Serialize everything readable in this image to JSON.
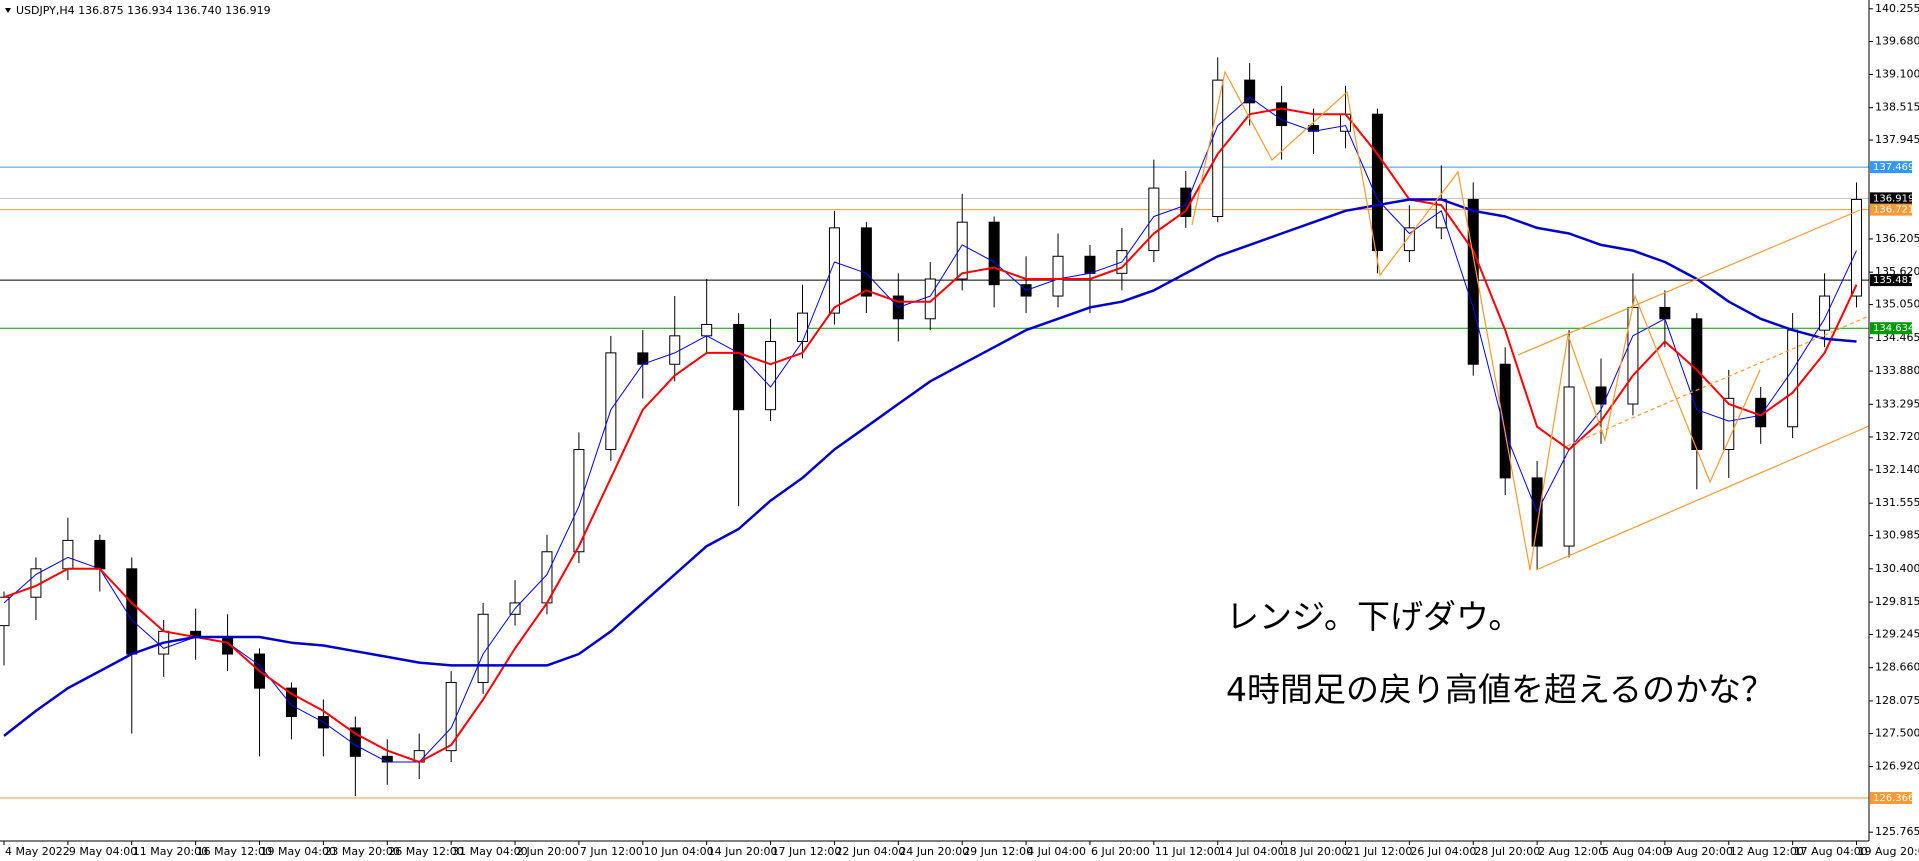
{
  "chart_data": {
    "type": "candlestick",
    "header": "USDJPY,H4  136.875 136.934 136.740 136.919",
    "annotations": [
      "レンジ。下げダウ。",
      "4時間足の戻り高値を超えるのかな？"
    ],
    "categories": [
      "4 May 2022",
      null,
      "9 May 04:00",
      null,
      "11 May 20:00",
      null,
      "16 May 12:00",
      null,
      "19 May 04:00",
      null,
      "23 May 20:00",
      null,
      "26 May 12:00",
      null,
      "31 May 04:00",
      null,
      "2 Jun 20:00",
      null,
      "7 Jun 12:00",
      null,
      "10 Jun 04:00",
      null,
      "14 Jun 20:00",
      null,
      "17 Jun 12:00",
      null,
      "22 Jun 04:00",
      null,
      "24 Jun 20:00",
      null,
      "29 Jun 12:00",
      null,
      "4 Jul 04:00",
      null,
      "6 Jul 20:00",
      null,
      "11 Jul 12:00",
      null,
      "14 Jul 04:00",
      null,
      "18 Jul 20:00",
      null,
      "21 Jul 12:00",
      null,
      "26 Jul 04:00",
      null,
      "28 Jul 20:00",
      null,
      "2 Aug 12:00",
      null,
      "5 Aug 04:00",
      null,
      "9 Aug 20:00",
      null,
      "12 Aug 12:00",
      null,
      "17 Aug 04:00",
      null,
      "19 Aug 20:00"
    ],
    "open": [
      129.4,
      129.9,
      130.4,
      130.9,
      130.4,
      128.9,
      129.3,
      129.2,
      128.9,
      128.3,
      127.8,
      127.6,
      127.1,
      127.0,
      127.2,
      128.4,
      129.6,
      129.8,
      130.7,
      132.5,
      134.2,
      134.0,
      134.5,
      134.7,
      133.2,
      134.4,
      134.9,
      136.4,
      135.2,
      134.8,
      135.5,
      136.5,
      135.4,
      135.2,
      135.9,
      135.6,
      136.0,
      137.1,
      136.6,
      139.0,
      138.6,
      138.2,
      138.1,
      138.4,
      136.0,
      136.4,
      136.9,
      134.0,
      132.0,
      130.8,
      133.6,
      133.3,
      135.0,
      134.8,
      132.5,
      133.4,
      132.9,
      134.6,
      135.2
    ],
    "high": [
      130.0,
      130.6,
      131.3,
      131.0,
      130.6,
      129.5,
      129.7,
      129.6,
      129.0,
      128.4,
      128.1,
      127.8,
      127.4,
      127.5,
      128.6,
      129.8,
      130.2,
      131.0,
      132.8,
      134.5,
      134.6,
      135.2,
      135.5,
      134.9,
      134.8,
      135.4,
      136.7,
      136.5,
      135.6,
      135.8,
      137.0,
      136.6,
      135.9,
      136.3,
      136.1,
      136.4,
      137.6,
      137.4,
      139.4,
      139.3,
      138.9,
      138.5,
      138.9,
      138.5,
      136.8,
      137.5,
      137.2,
      134.3,
      132.3,
      134.6,
      134.1,
      135.6,
      135.3,
      134.9,
      133.9,
      133.6,
      134.9,
      135.6,
      137.2
    ],
    "low": [
      128.7,
      129.5,
      130.2,
      130.0,
      127.5,
      128.5,
      128.8,
      128.6,
      127.1,
      127.4,
      127.1,
      126.4,
      126.6,
      126.7,
      127.0,
      128.2,
      129.4,
      129.6,
      130.5,
      132.3,
      133.4,
      133.7,
      134.2,
      131.5,
      133.0,
      134.1,
      134.7,
      134.9,
      134.4,
      134.6,
      135.3,
      135.0,
      134.9,
      135.0,
      134.9,
      135.3,
      135.8,
      136.4,
      136.5,
      138.2,
      137.6,
      137.7,
      137.8,
      135.6,
      135.8,
      136.2,
      133.8,
      131.7,
      130.4,
      130.6,
      132.6,
      133.1,
      134.3,
      131.8,
      132.0,
      132.6,
      132.7,
      134.3,
      135.0
    ],
    "close": [
      129.9,
      130.4,
      130.9,
      130.4,
      128.9,
      129.3,
      129.2,
      128.9,
      128.3,
      127.8,
      127.6,
      127.1,
      127.0,
      127.2,
      128.4,
      129.6,
      129.8,
      130.7,
      132.5,
      134.2,
      134.0,
      134.5,
      134.7,
      133.2,
      134.4,
      134.9,
      136.4,
      135.2,
      134.8,
      135.5,
      136.5,
      135.4,
      135.2,
      135.9,
      135.6,
      136.0,
      137.1,
      136.6,
      139.0,
      138.6,
      138.2,
      138.1,
      138.4,
      136.0,
      136.4,
      136.9,
      134.0,
      132.0,
      130.8,
      133.6,
      133.3,
      135.0,
      134.8,
      132.5,
      133.4,
      132.9,
      134.6,
      135.2,
      136.9
    ],
    "candle_colors": {
      "up": "#ffffff",
      "down": "#000000",
      "outline": "#000000"
    },
    "series": [
      {
        "color": "#0000ff",
        "width": 1,
        "values": [
          129.8,
          130.3,
          130.6,
          130.4,
          129.5,
          129.0,
          129.2,
          129.1,
          128.7,
          128.0,
          127.7,
          127.3,
          127.0,
          127.0,
          127.6,
          128.9,
          129.7,
          130.3,
          131.5,
          133.2,
          134.0,
          134.2,
          134.5,
          134.2,
          133.6,
          134.4,
          135.8,
          135.6,
          135.0,
          135.2,
          136.1,
          135.8,
          135.3,
          135.5,
          135.6,
          135.8,
          136.6,
          136.8,
          138.2,
          138.7,
          138.3,
          138.1,
          138.2,
          136.9,
          136.3,
          136.7,
          135.0,
          132.8,
          131.4,
          132.5,
          133.2,
          134.5,
          134.8,
          133.2,
          133.0,
          133.1,
          133.9,
          134.8,
          136.0
        ]
      },
      {
        "color": "#ff0000",
        "width": 2,
        "values": [
          129.9,
          130.1,
          130.4,
          130.4,
          129.8,
          129.3,
          129.2,
          129.1,
          128.6,
          128.2,
          127.9,
          127.5,
          127.2,
          127.0,
          127.3,
          128.1,
          129.0,
          129.8,
          130.8,
          132.0,
          133.2,
          133.8,
          134.2,
          134.2,
          134.0,
          134.2,
          135.0,
          135.3,
          135.1,
          135.1,
          135.6,
          135.7,
          135.5,
          135.5,
          135.5,
          135.7,
          136.3,
          136.7,
          137.7,
          138.4,
          138.5,
          138.4,
          138.4,
          137.7,
          136.9,
          136.8,
          136.0,
          134.6,
          132.9,
          132.5,
          133.0,
          133.8,
          134.4,
          133.9,
          133.3,
          133.1,
          133.5,
          134.2,
          135.4
        ]
      },
      {
        "color": "#0000cc",
        "width": 2.5,
        "values": [
          127.46,
          127.9,
          128.3,
          128.6,
          128.9,
          129.1,
          129.2,
          129.2,
          129.2,
          129.1,
          129.05,
          128.95,
          128.85,
          128.75,
          128.7,
          128.7,
          128.7,
          128.7,
          128.9,
          129.3,
          129.8,
          130.3,
          130.8,
          131.1,
          131.6,
          132.0,
          132.5,
          132.9,
          133.3,
          133.7,
          134.0,
          134.3,
          134.6,
          134.8,
          135.0,
          135.1,
          135.3,
          135.6,
          135.9,
          136.1,
          136.3,
          136.5,
          136.7,
          136.8,
          136.9,
          136.9,
          136.7,
          136.6,
          136.4,
          136.3,
          136.1,
          136.0,
          135.8,
          135.5,
          135.1,
          134.8,
          134.6,
          134.45,
          134.4
        ]
      }
    ],
    "levels": [
      {
        "value": 137.469,
        "color": "#3399ff"
      },
      {
        "value": 136.919,
        "color": "#c0c0c0",
        "label_color": "#000000"
      },
      {
        "value": 136.721,
        "color": "#ff9933"
      },
      {
        "value": 135.481,
        "color": "#000000"
      },
      {
        "value": 134.634,
        "color": "#009900"
      },
      {
        "value": 126.366,
        "color": "#ff9933"
      }
    ],
    "ylim": [
      125.61,
      140.41
    ],
    "yticks": [
      140.255,
      {
        "value": 139.68,
        "label": "139.680"
      },
      {
        "value": 139.1,
        "label": "139.100"
      },
      138.515,
      137.945,
      136.205,
      {
        "value": 135.62,
        "label": "135.620"
      },
      {
        "value": 135.05,
        "label": "135.050"
      },
      134.465,
      {
        "value": 133.88,
        "label": "133.880"
      },
      133.295,
      {
        "value": 132.72,
        "label": "132.720"
      },
      {
        "value": 132.14,
        "label": "132.140"
      },
      131.555,
      130.985,
      {
        "value": 130.4,
        "label": "130.400"
      },
      129.815,
      129.245,
      {
        "value": 128.66,
        "label": "128.660"
      },
      128.075,
      {
        "value": 127.5,
        "label": "127.500"
      },
      {
        "value": 126.92,
        "label": "126.920"
      },
      125.765
    ],
    "grid": false
  }
}
